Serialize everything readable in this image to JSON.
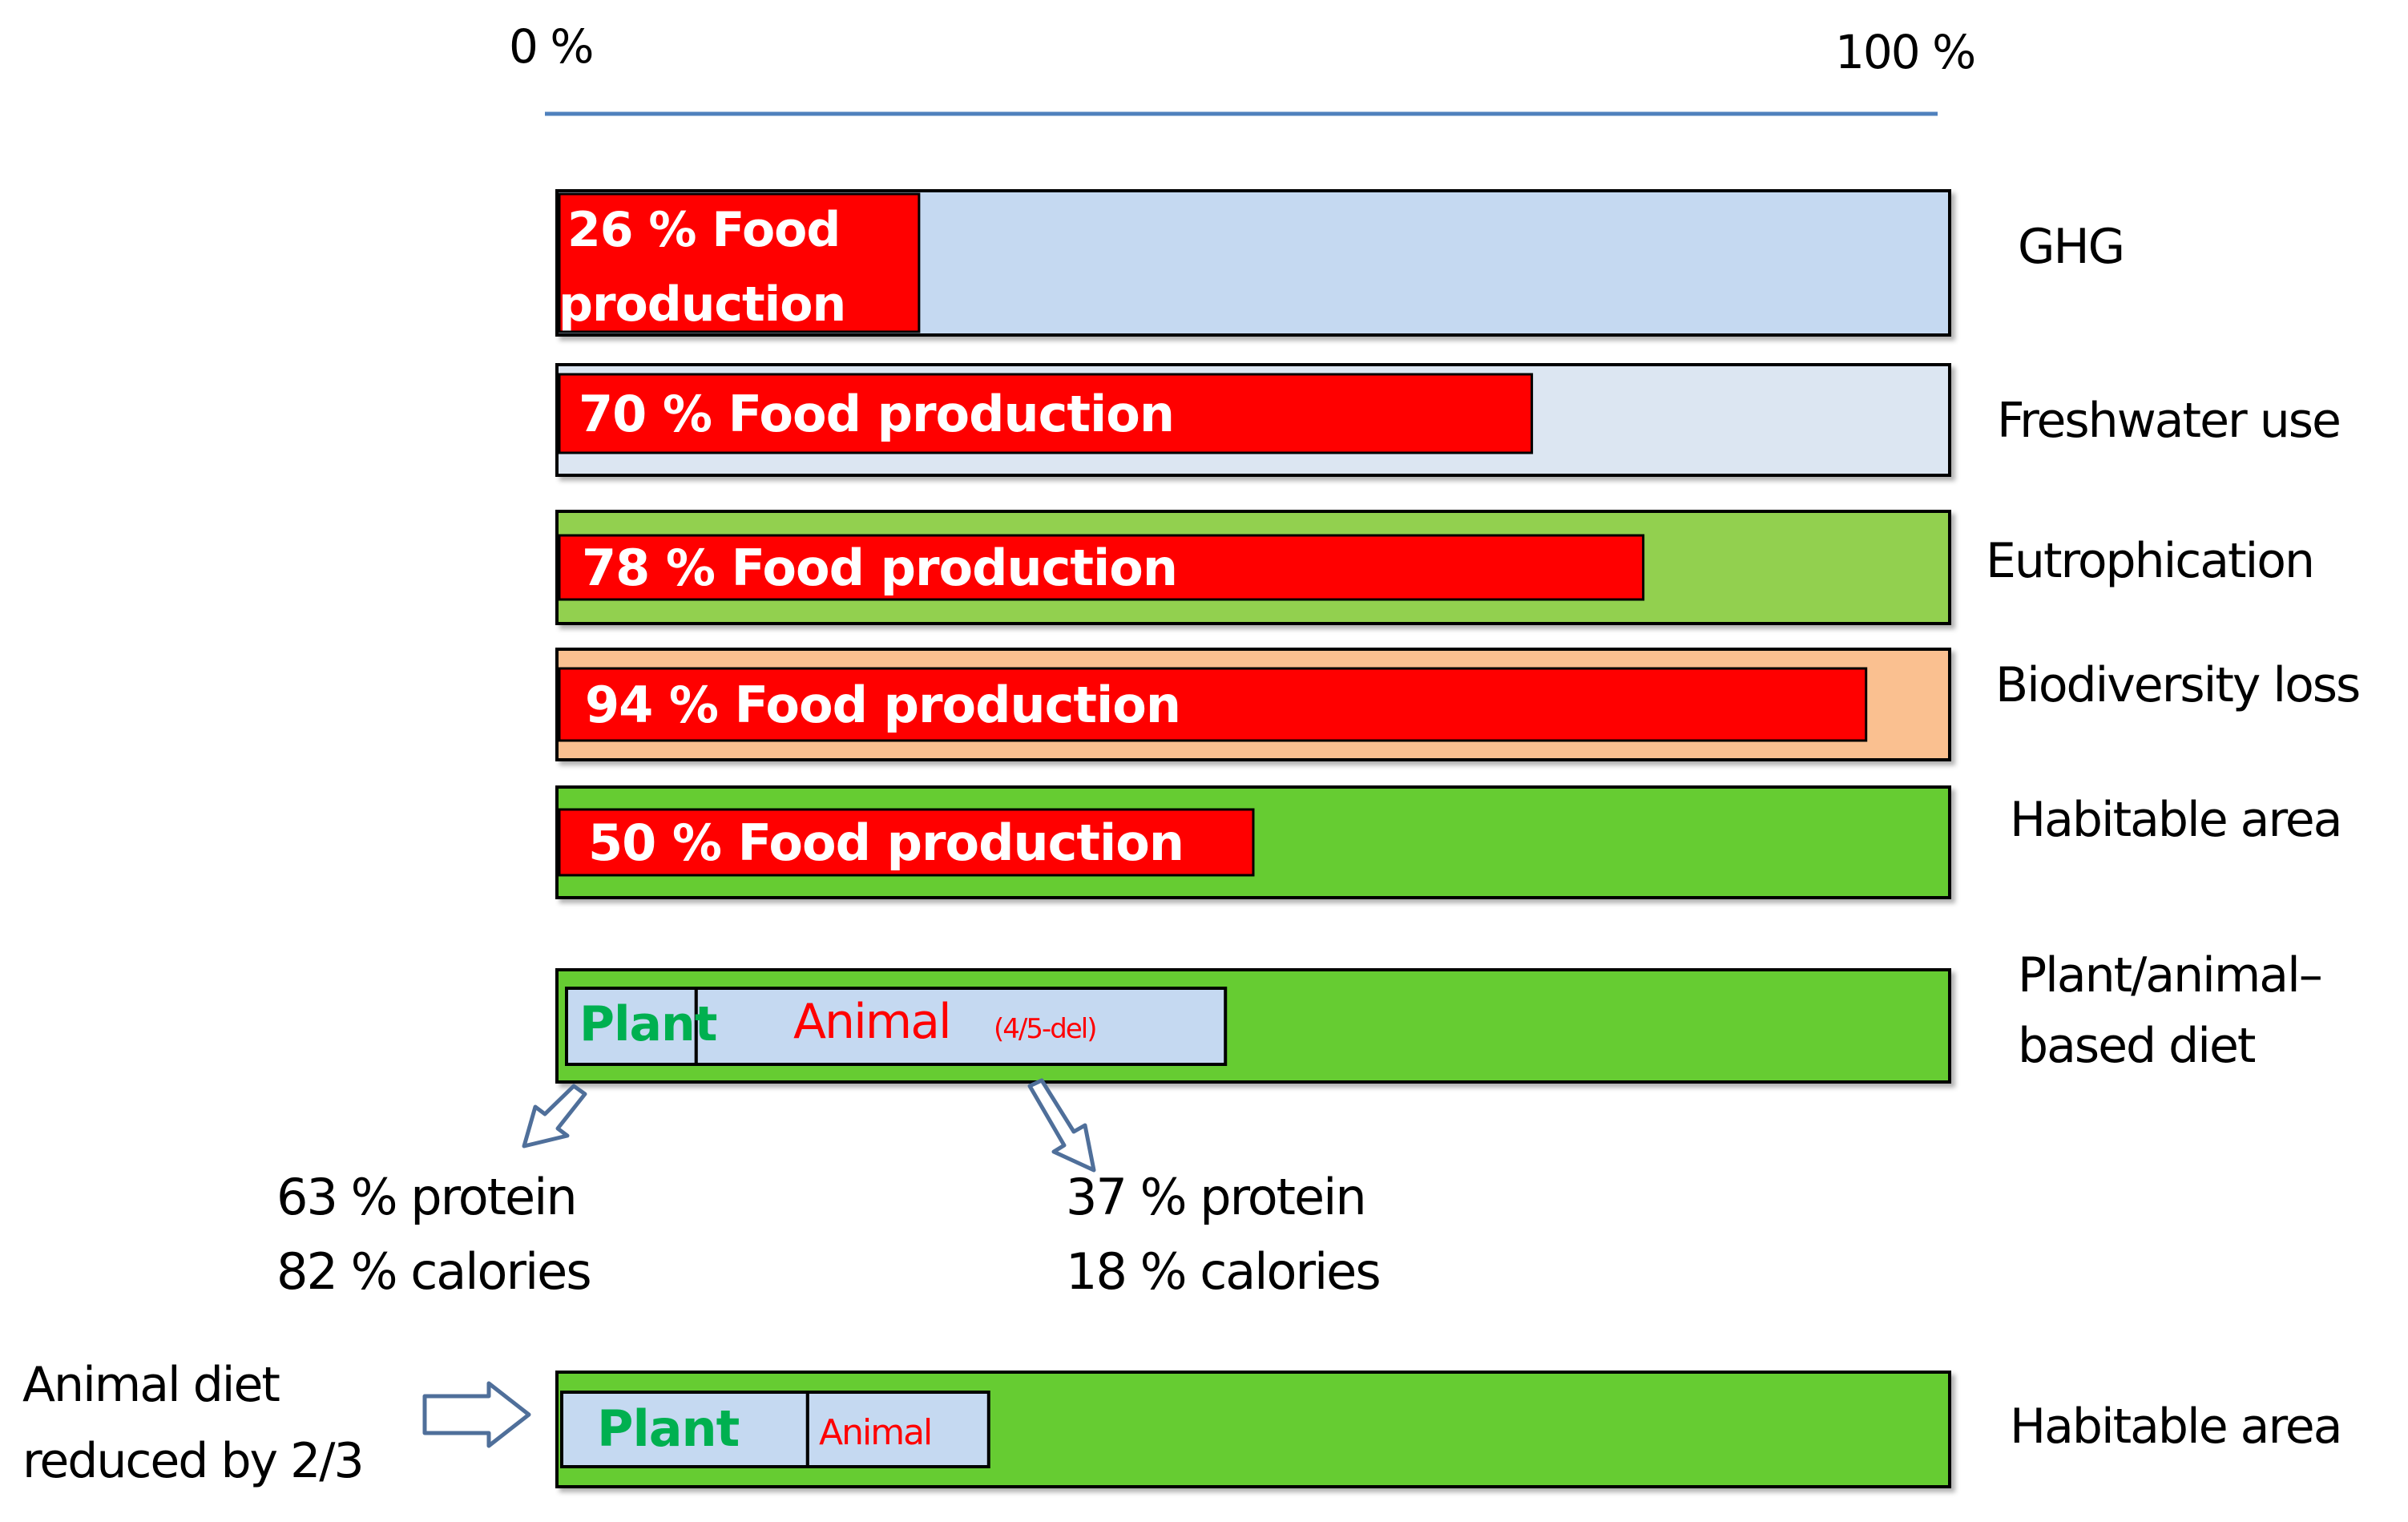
{
  "chart_data": {
    "type": "bar",
    "title": "",
    "axis": {
      "min_label": "0 %",
      "max_label": "100 %",
      "xlim": [
        0,
        100
      ]
    },
    "categories": [
      "GHG",
      "Freshwater use",
      "Eutrophication",
      "Biodiversity loss",
      "Habitable area"
    ],
    "series": [
      {
        "name": "Food production",
        "values": [
          26,
          70,
          78,
          94,
          50
        ]
      }
    ],
    "bar_labels": [
      {
        "pct": "26 %",
        "text": "Food",
        "text2": "production"
      },
      {
        "pct": "70 %",
        "text": "Food production"
      },
      {
        "pct": "78 %",
        "text": "Food production"
      },
      {
        "pct": "94 %",
        "text": "Food production"
      },
      {
        "pct": "50 %",
        "text": "Food production"
      }
    ],
    "background_colors": [
      "#c5d9f1",
      "#dce6f2",
      "#92d050",
      "#fac090",
      "#66cc33"
    ],
    "value_color": "#ff0000",
    "diet_breakdown": {
      "label_line1": "Plant/animal–",
      "label_line2": "based diet",
      "plant_label": "Plant",
      "animal_label": "Animal",
      "animal_note": "(4/5-del)",
      "plant_share": 10,
      "animal_share": 38,
      "plant_stats": [
        "63 % protein",
        "82 % calories"
      ],
      "animal_stats": [
        "37 % protein",
        "18 % calories"
      ]
    },
    "reduced_scenario": {
      "note_line1": "Animal diet",
      "note_line2": "reduced by 2/3",
      "category": "Habitable area",
      "plant_label": "Plant",
      "animal_label": "Animal",
      "plant_share": 18,
      "animal_share": 13
    },
    "colors": {
      "axis": "#4f81bd",
      "plant_text": "#00b050",
      "animal_text": "#ff0000",
      "box_fill": "#c5d9f1",
      "green_fill": "#66cc33"
    }
  }
}
